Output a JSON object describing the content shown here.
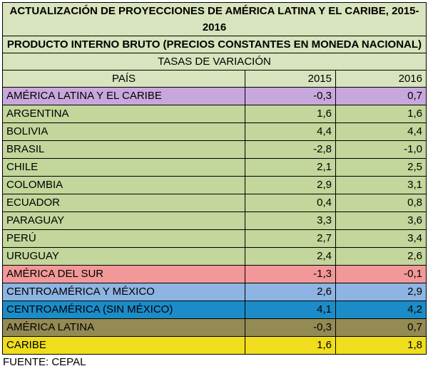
{
  "table": {
    "title": "ACTUALIZACIÓN DE PROYECCIONES DE AMÉRICA LATINA Y EL CARIBE, 2015-2016",
    "subtitle": "PRODUCTO INTERNO BRUTO (PRECIOS CONSTANTES EN MONEDA NACIONAL)",
    "caption": "TASAS DE VARIACIÓN",
    "header": {
      "country": "PAÍS",
      "year1": "2015",
      "year2": "2016"
    },
    "colors": {
      "header_bg": "#d7e4bd",
      "default_row": "#c3d69b",
      "lac": "#c8a8dc",
      "south_america": "#f29898",
      "central_mexico": "#8db4e2",
      "central_no_mexico": "#1c8cc8",
      "latin_america": "#948a54",
      "caribbean": "#f0de1e"
    },
    "rows": [
      {
        "name": "AMÉRICA LATINA Y EL CARIBE",
        "y2015": "-0,3",
        "y2016": "0,7",
        "color": "#c8a8dc"
      },
      {
        "name": "ARGENTINA",
        "y2015": "1,6",
        "y2016": "1,6",
        "color": "#c3d69b"
      },
      {
        "name": "BOLIVIA",
        "y2015": "4,4",
        "y2016": "4,4",
        "color": "#c3d69b"
      },
      {
        "name": "BRASIL",
        "y2015": "-2,8",
        "y2016": "-1,0",
        "color": "#c3d69b"
      },
      {
        "name": "CHILE",
        "y2015": "2,1",
        "y2016": "2,5",
        "color": "#c3d69b"
      },
      {
        "name": "COLOMBIA",
        "y2015": "2,9",
        "y2016": "3,1",
        "color": "#c3d69b"
      },
      {
        "name": "ECUADOR",
        "y2015": "0,4",
        "y2016": "0,8",
        "color": "#c3d69b"
      },
      {
        "name": "PARAGUAY",
        "y2015": "3,3",
        "y2016": "3,6",
        "color": "#c3d69b"
      },
      {
        "name": "PERÚ",
        "y2015": "2,7",
        "y2016": "3,4",
        "color": "#c3d69b"
      },
      {
        "name": "URUGUAY",
        "y2015": "2,4",
        "y2016": "2,6",
        "color": "#c3d69b"
      },
      {
        "name": "AMÉRICA DEL SUR",
        "y2015": "-1,3",
        "y2016": "-0,1",
        "color": "#f29898"
      },
      {
        "name": "CENTROAMÉRICA Y MÉXICO",
        "y2015": "2,6",
        "y2016": "2,9",
        "color": "#8db4e2"
      },
      {
        "name": "CENTROAMÉRICA (SIN MÉXICO)",
        "y2015": "4,1",
        "y2016": "4,2",
        "color": "#1c8cc8"
      },
      {
        "name": "AMÉRICA LATINA",
        "y2015": "-0,3",
        "y2016": "0,7",
        "color": "#948a54"
      },
      {
        "name": "CARIBE",
        "y2015": "1,6",
        "y2016": "1,8",
        "color": "#f0de1e"
      }
    ]
  },
  "source": "FUENTE: CEPAL"
}
